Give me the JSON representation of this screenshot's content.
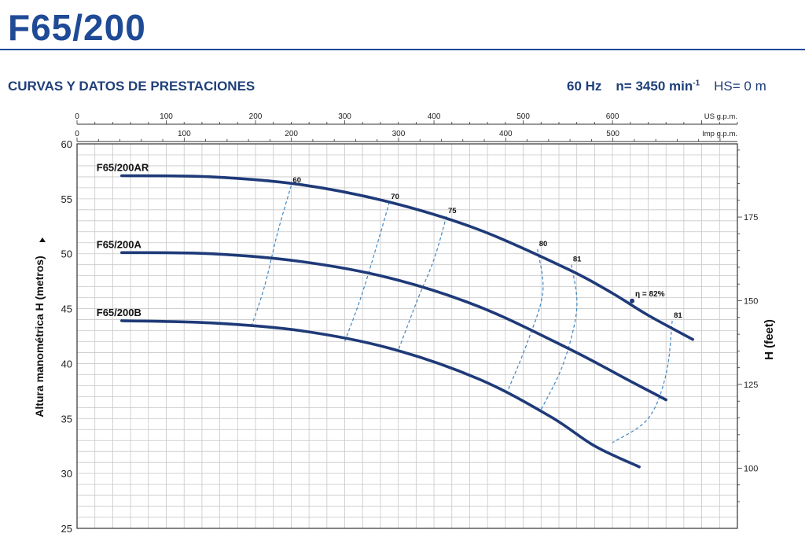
{
  "header": {
    "title": "F65/200",
    "subtitle": "CURVAS Y DATOS DE PRESTACIONES",
    "freq": "60 Hz",
    "speed_label": "n= 3450 min",
    "speed_exp": "-1",
    "hs": "HS= 0 m"
  },
  "colors": {
    "brand": "#1f4a96",
    "curve": "#1f3a78",
    "iso": "#3d86c6",
    "grid": "#c8c8c8"
  },
  "chart_data": {
    "type": "line",
    "ylabel": "Altura manométrica H  (metros)",
    "y2label": "H  (feet)",
    "ylim": [
      25,
      60
    ],
    "yticks": [
      25,
      30,
      35,
      40,
      45,
      50,
      55,
      60
    ],
    "y2ticks": [
      100,
      125,
      150,
      175
    ],
    "us_gpm_label": "US g.p.m.",
    "us_gpm_ticks": [
      0,
      100,
      200,
      300,
      400,
      500,
      600
    ],
    "imp_gpm_label": "Imp g.p.m.",
    "imp_gpm_ticks": [
      0,
      100,
      200,
      300,
      400,
      500
    ],
    "xlim_us_gpm": [
      0,
      740
    ],
    "series": [
      {
        "name": "F65/200AR",
        "x": [
          50,
          150,
          250,
          350,
          450,
          550,
          600,
          640,
          690
        ],
        "y": [
          57.1,
          57.0,
          56.3,
          54.7,
          52.2,
          48.6,
          46.4,
          44.4,
          42.2
        ]
      },
      {
        "name": "F65/200A",
        "x": [
          50,
          150,
          250,
          350,
          450,
          550,
          620,
          660
        ],
        "y": [
          50.1,
          50.0,
          49.3,
          47.8,
          45.2,
          41.4,
          38.4,
          36.7
        ]
      },
      {
        "name": "F65/200B",
        "x": [
          50,
          150,
          250,
          350,
          450,
          530,
          580,
          630
        ],
        "y": [
          43.9,
          43.7,
          43.0,
          41.4,
          38.6,
          35.2,
          32.5,
          30.6
        ]
      }
    ],
    "efficiency": [
      {
        "label": "60",
        "x": [
          240,
          225,
          210,
          195
        ],
        "y": [
          56.2,
          52.0,
          47.0,
          43.3
        ]
      },
      {
        "label": "70",
        "x": [
          350,
          335,
          318,
          300
        ],
        "y": [
          54.7,
          50.5,
          46.0,
          42.0
        ]
      },
      {
        "label": "75",
        "x": [
          414,
          400,
          380,
          360
        ],
        "y": [
          53.4,
          49.5,
          45.5,
          41.2
        ]
      },
      {
        "label": "80",
        "x": [
          516,
          522,
          505,
          482
        ],
        "y": [
          50.4,
          46.5,
          42.0,
          37.4
        ]
      },
      {
        "label": "81",
        "x": [
          554,
          560,
          545,
          520
        ],
        "y": [
          49.0,
          45.0,
          40.0,
          35.8
        ]
      },
      {
        "label": "81",
        "x": [
          667,
          660,
          640,
          600
        ],
        "y": [
          43.9,
          39.0,
          35.0,
          32.8
        ]
      }
    ],
    "bep": {
      "label": "η = 82%",
      "x": 622,
      "y": 45.7
    }
  }
}
